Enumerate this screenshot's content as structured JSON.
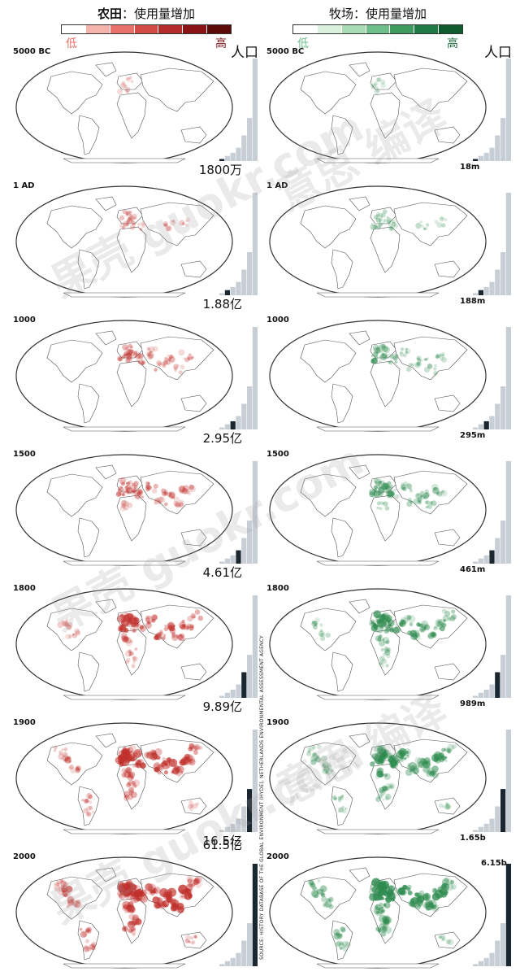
{
  "legend": {
    "crop": {
      "title_bold": "农田",
      "title_rest": "：使用量增加",
      "low": "低",
      "high": "高",
      "colors": [
        "#ffffff",
        "#f4b4ac",
        "#e8706a",
        "#d24a44",
        "#b52a2a",
        "#8a1414",
        "#5c0a0a"
      ]
    },
    "pasture": {
      "title": "牧场：使用量增加",
      "low": "低",
      "high": "高",
      "colors": [
        "#ffffff",
        "#d9f0dc",
        "#a9dcb3",
        "#6fbf8a",
        "#3e9c61",
        "#1f7a43",
        "#0f5a2e"
      ]
    }
  },
  "population_label": "人口",
  "crop_color": "#c0302c",
  "pasture_color": "#2e8b4f",
  "bar_color": "#c8ced6",
  "bar_highlight": "#1a2630",
  "panels": [
    {
      "year": "5000 BC",
      "crop_pop": "1800万",
      "past_pop": "18m",
      "intensity": 0.05,
      "hi": 0
    },
    {
      "year": "1 AD",
      "crop_pop": "1.88亿",
      "past_pop": "188m",
      "intensity": 0.25,
      "hi": 1
    },
    {
      "year": "1000",
      "crop_pop": "2.95亿",
      "past_pop": "295m",
      "intensity": 0.4,
      "hi": 2
    },
    {
      "year": "1500",
      "crop_pop": "4.61亿",
      "past_pop": "461m",
      "intensity": 0.5,
      "hi": 3
    },
    {
      "year": "1800",
      "crop_pop": "9.89亿",
      "past_pop": "989m",
      "intensity": 0.7,
      "hi": 4
    },
    {
      "year": "1900",
      "crop_pop": "16.5亿",
      "past_pop": "1.65b",
      "intensity": 0.85,
      "hi": 5
    },
    {
      "year": "2000",
      "crop_pop": "61.5亿",
      "past_pop": "6.15b",
      "intensity": 1.0,
      "hi": 6
    }
  ],
  "bar_values": [
    0.02,
    0.05,
    0.08,
    0.13,
    0.25,
    0.42,
    1.0
  ],
  "source": "SOURCE: HISTORY DATABASE OF THE GLOBAL ENVIRONMENT (HYDE), NETHERLANDS ENVIRONMENTAL ASSESSMENT AGENCY"
}
